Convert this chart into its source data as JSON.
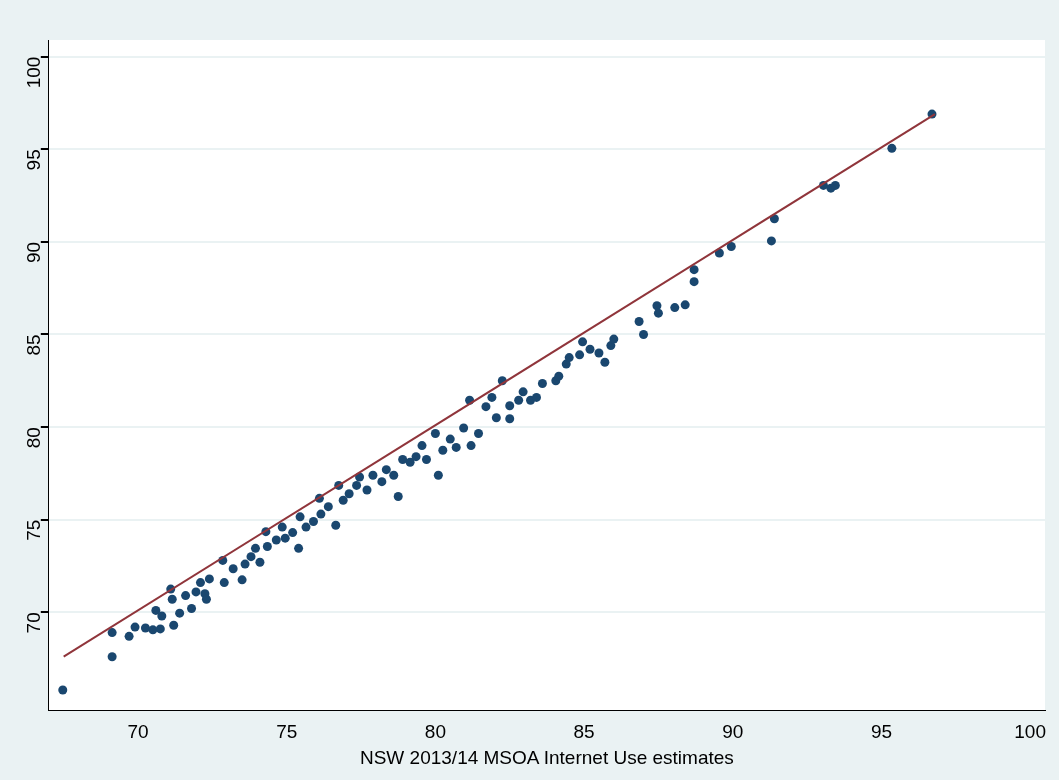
{
  "chart_data": {
    "type": "scatter",
    "xlabel": "NSW 2013/14 MSOA Internet Use estimates",
    "xlim": [
      67,
      100.5
    ],
    "ylim": [
      64.7,
      100.9
    ],
    "xticks": [
      70,
      75,
      80,
      85,
      90,
      95,
      100
    ],
    "yticks": [
      70,
      75,
      80,
      85,
      90,
      95,
      100
    ],
    "grid": "y",
    "marker": "circle",
    "series": [
      {
        "type": "scatter",
        "color": "#1a476f",
        "x": [
          67.47,
          69.13,
          69.13,
          69.7,
          69.9,
          70.25,
          70.5,
          70.75,
          70.6,
          70.8,
          71.2,
          71.1,
          71.15,
          71.4,
          71.6,
          71.8,
          71.95,
          72.1,
          72.25,
          72.3,
          72.4,
          72.85,
          72.9,
          73.2,
          73.5,
          73.6,
          73.8,
          73.95,
          74.1,
          74.3,
          74.35,
          74.65,
          74.85,
          74.95,
          75.2,
          75.4,
          75.45,
          75.65,
          75.9,
          76.1,
          76.15,
          76.4,
          76.65,
          76.75,
          76.9,
          77.1,
          77.35,
          77.45,
          77.7,
          77.9,
          78.2,
          78.35,
          78.6,
          78.75,
          78.9,
          79.15,
          79.35,
          79.55,
          79.7,
          80.0,
          80.1,
          80.25,
          80.5,
          80.7,
          80.95,
          81.15,
          81.2,
          81.45,
          81.7,
          81.9,
          82.05,
          82.25,
          82.5,
          82.5,
          82.8,
          82.95,
          83.2,
          83.4,
          83.6,
          84.05,
          84.15,
          84.4,
          84.5,
          84.95,
          84.85,
          85.2,
          85.5,
          85.7,
          85.9,
          86.0,
          86.85,
          87.0,
          87.45,
          87.5,
          88.05,
          88.4,
          88.7,
          88.7,
          89.55,
          89.95,
          91.3,
          91.4,
          93.05,
          93.3,
          93.45,
          95.35,
          96.7
        ],
        "values": [
          65.8,
          67.6,
          68.9,
          68.7,
          69.2,
          69.15,
          69.05,
          69.1,
          70.1,
          69.8,
          69.3,
          71.25,
          70.7,
          69.95,
          70.9,
          70.2,
          71.1,
          71.6,
          71.0,
          70.7,
          71.8,
          72.8,
          71.6,
          72.35,
          71.75,
          72.6,
          73.0,
          73.45,
          72.7,
          74.35,
          73.55,
          73.9,
          74.6,
          74.0,
          74.3,
          73.45,
          75.15,
          74.6,
          74.9,
          76.15,
          75.3,
          75.7,
          74.7,
          76.85,
          76.05,
          76.4,
          76.85,
          77.3,
          76.6,
          77.4,
          77.05,
          77.7,
          77.4,
          76.25,
          78.25,
          78.1,
          78.4,
          79.0,
          78.25,
          79.65,
          77.4,
          78.75,
          79.35,
          78.9,
          79.95,
          81.45,
          79.0,
          79.65,
          81.1,
          81.6,
          80.5,
          82.5,
          81.15,
          80.45,
          81.45,
          81.9,
          81.45,
          81.6,
          82.35,
          82.5,
          82.75,
          83.4,
          83.75,
          84.6,
          83.9,
          84.2,
          84.0,
          83.5,
          84.4,
          84.75,
          85.7,
          85.0,
          86.55,
          86.15,
          86.45,
          86.6,
          88.5,
          87.85,
          89.4,
          89.75,
          90.05,
          91.25,
          93.05,
          92.9,
          93.05,
          95.05,
          96.9
        ]
      },
      {
        "type": "line",
        "color": "#90353b",
        "marker": "none",
        "x": [
          67.5,
          96.8
        ],
        "values": [
          67.6,
          96.9
        ]
      }
    ]
  }
}
